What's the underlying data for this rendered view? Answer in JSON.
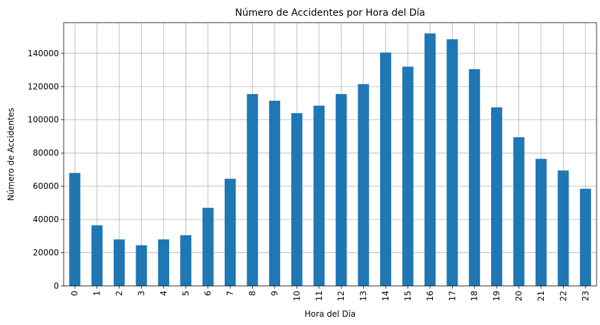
{
  "chart_data": {
    "type": "bar",
    "title": "Número de Accidentes por Hora del Día",
    "xlabel": "Hora del Día",
    "ylabel": "Número de Accidentes",
    "categories": [
      "0",
      "1",
      "2",
      "3",
      "4",
      "5",
      "6",
      "7",
      "8",
      "9",
      "10",
      "11",
      "12",
      "13",
      "14",
      "15",
      "16",
      "17",
      "18",
      "19",
      "20",
      "21",
      "22",
      "23"
    ],
    "values": [
      68000,
      36500,
      28000,
      24500,
      28000,
      30500,
      47000,
      64500,
      115500,
      111500,
      104000,
      108500,
      115500,
      121500,
      140500,
      132000,
      152000,
      148500,
      130500,
      107500,
      89500,
      76500,
      69500,
      58500
    ],
    "ylim": [
      0,
      158500
    ],
    "yticks": [
      0,
      20000,
      40000,
      60000,
      80000,
      100000,
      120000,
      140000
    ],
    "ytick_labels": [
      "0",
      "20000",
      "40000",
      "60000",
      "80000",
      "100000",
      "120000",
      "140000"
    ],
    "grid": true,
    "bar_color": "#1f77b4",
    "legend": "none"
  }
}
